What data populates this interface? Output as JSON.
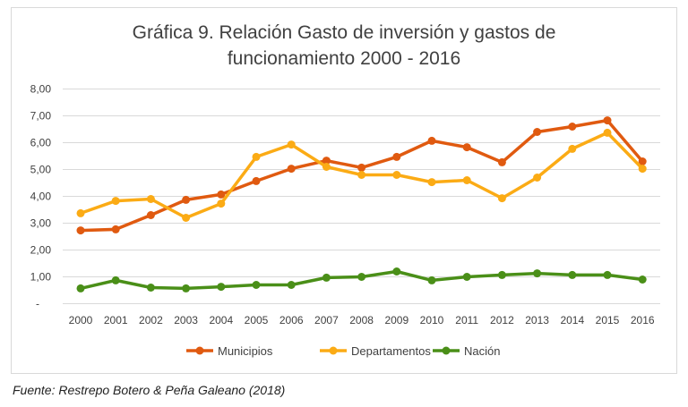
{
  "chart_data": {
    "type": "line",
    "title_line1": "Gráfica 9. Relación Gasto de inversión y gastos de",
    "title_line2": "funcionamiento 2000 - 2016",
    "xlabel": "",
    "ylabel": "",
    "ylim": [
      0,
      8
    ],
    "ytick_labels": [
      "-",
      "1,00",
      "2,00",
      "3,00",
      "4,00",
      "5,00",
      "6,00",
      "7,00",
      "8,00"
    ],
    "grid": true,
    "legend_position": "bottom",
    "categories": [
      "2000",
      "2001",
      "2002",
      "2003",
      "2004",
      "2005",
      "2006",
      "2007",
      "2008",
      "2009",
      "2010",
      "2011",
      "2012",
      "2013",
      "2014",
      "2015",
      "2016"
    ],
    "series": [
      {
        "name": "Municipios",
        "color": "#e05a10",
        "values": [
          2.73,
          2.77,
          3.3,
          3.87,
          4.07,
          4.57,
          5.03,
          5.33,
          5.07,
          5.47,
          6.07,
          5.83,
          5.27,
          6.4,
          6.6,
          6.83,
          5.3
        ]
      },
      {
        "name": "Departamentos",
        "color": "#fbab15",
        "values": [
          3.37,
          3.83,
          3.9,
          3.2,
          3.73,
          5.47,
          5.93,
          5.1,
          4.8,
          4.8,
          4.53,
          4.6,
          3.93,
          4.7,
          5.77,
          6.37,
          5.03
        ]
      },
      {
        "name": "Nación",
        "color": "#4a8f18",
        "values": [
          0.57,
          0.87,
          0.6,
          0.57,
          0.63,
          0.7,
          0.7,
          0.97,
          1.0,
          1.2,
          0.87,
          1.0,
          1.07,
          1.13,
          1.07,
          1.07,
          0.9
        ]
      }
    ]
  },
  "source": "Fuente: Restrepo Botero & Peña Galeano (2018)"
}
